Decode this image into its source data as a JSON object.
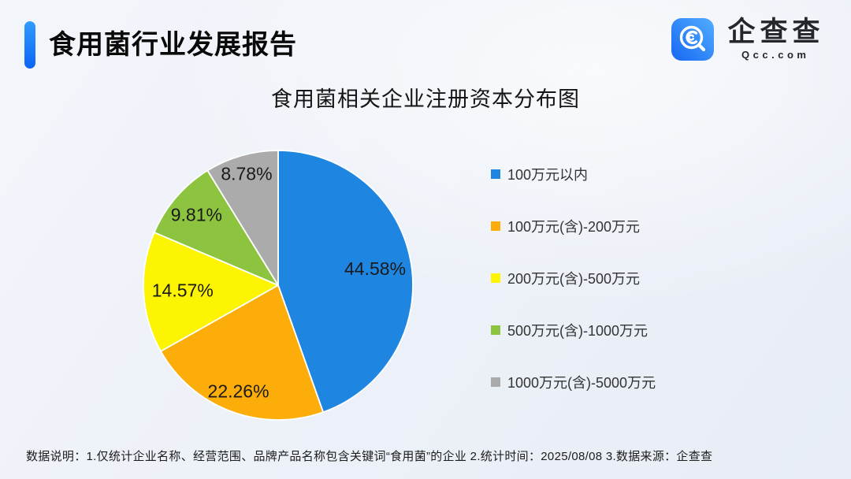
{
  "header": {
    "title": "食用菌行业发展报告",
    "logo": {
      "name": "企查查",
      "domain": "Qcc.com"
    }
  },
  "chart_data": {
    "type": "pie",
    "title": "食用菌相关企业注册资本分布图",
    "legend_position": "right",
    "labels_inside": true,
    "value_suffix": "%",
    "start_angle_deg": 0,
    "direction": "clockwise",
    "slices": [
      {
        "label": "100万元以内",
        "value": 44.58,
        "color": "#1e86e1"
      },
      {
        "label": "100万元(含)-200万元",
        "value": 22.26,
        "color": "#fcad0a"
      },
      {
        "label": "200万元(含)-500万元",
        "value": 14.57,
        "color": "#fcf400"
      },
      {
        "label": "500万元(含)-1000万元",
        "value": 9.81,
        "color": "#8dc43f"
      },
      {
        "label": "1000万元(含)-5000万元",
        "value": 8.78,
        "color": "#ababab"
      }
    ]
  },
  "footer": {
    "note": "数据说明：1.仅统计企业名称、经营范围、品牌产品名称包含关键词“食用菌”的企业  2.统计时间：2025/08/08  3.数据来源：企查查"
  }
}
